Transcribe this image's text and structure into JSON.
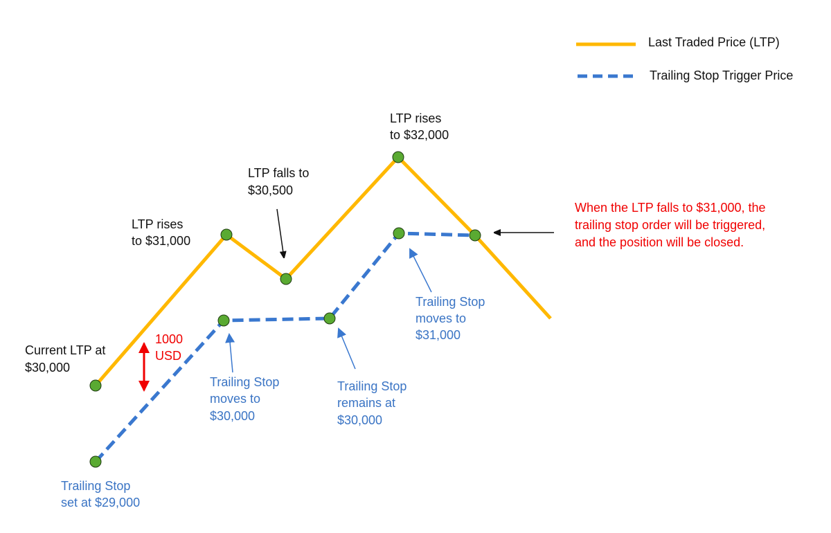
{
  "legend": {
    "ltp": "Last Traded Price (LTP)",
    "trailing": "Trailing Stop Trigger Price"
  },
  "colors": {
    "ltp_line": "#FFB800",
    "trailing_line": "#3A78CF",
    "points": "#5AAA32",
    "annotation_blue": "#3A74C4",
    "annotation_red": "#F00000"
  },
  "ltp_prices": [
    30000,
    31000,
    30500,
    32000,
    31000
  ],
  "trailing_prices": [
    29000,
    30000,
    30000,
    31000,
    31000
  ],
  "labels": {
    "current": [
      "Current LTP at",
      "$30,000"
    ],
    "rise1": [
      "LTP rises",
      "to $31,000"
    ],
    "fall": [
      "LTP falls to",
      "$30,500"
    ],
    "rise2": [
      "LTP rises",
      "to $32,000"
    ],
    "gap": [
      "1000",
      "USD"
    ],
    "ts_set": [
      "Trailing Stop",
      "set at $29,000"
    ],
    "ts_moves1": [
      "Trailing Stop",
      "moves to",
      "$30,000"
    ],
    "ts_remains": [
      "Trailing Stop",
      "remains at",
      "$30,000"
    ],
    "ts_moves2": [
      "Trailing Stop",
      "moves to",
      "$31,000"
    ],
    "trigger": [
      "When the LTP falls to $31,000, the",
      "trailing stop order will be triggered,",
      "and the position will be closed."
    ]
  }
}
